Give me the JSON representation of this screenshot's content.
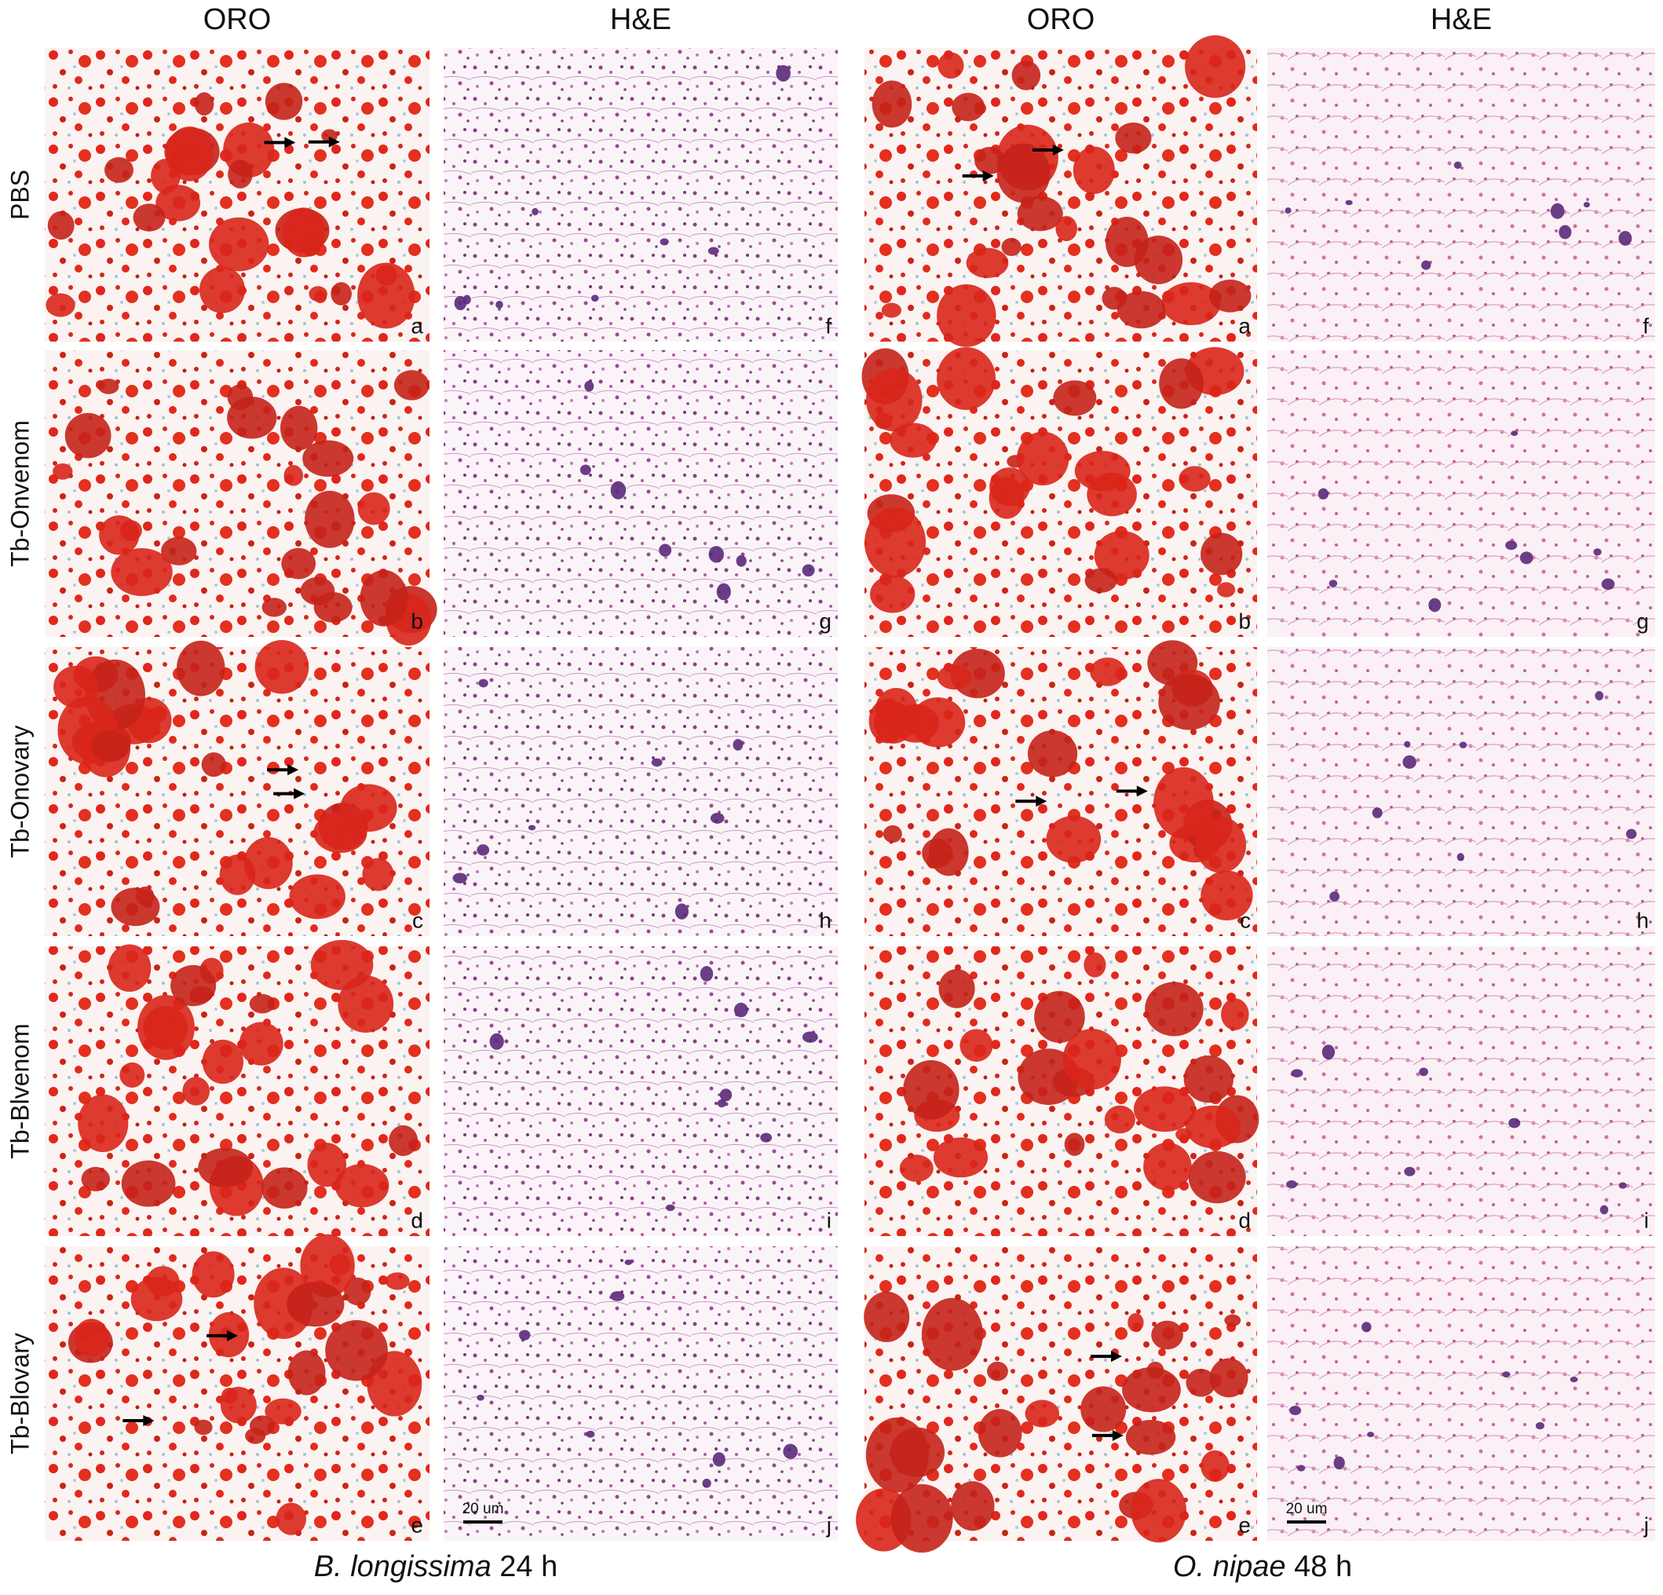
{
  "groups": [
    {
      "columns": [
        "ORO",
        "H&E"
      ],
      "species": "B. longissima",
      "time": "24 h",
      "oro_letters": [
        "a",
        "b",
        "c",
        "d",
        "e"
      ],
      "he_letters": [
        "f",
        "g",
        "h",
        "i",
        "j"
      ],
      "scale_bar": "20 um"
    },
    {
      "columns": [
        "ORO",
        "H&E"
      ],
      "species": "O. nipae",
      "time": "48 h",
      "oro_letters": [
        "a",
        "b",
        "c",
        "d",
        "e"
      ],
      "he_letters": [
        "f",
        "g",
        "h",
        "i",
        "j"
      ],
      "scale_bar": "20 um"
    }
  ],
  "rows": [
    "PBS",
    "Tb-Onvenom",
    "Tb-Onovary",
    "Tb-Blvenom",
    "Tb-Blovary"
  ]
}
